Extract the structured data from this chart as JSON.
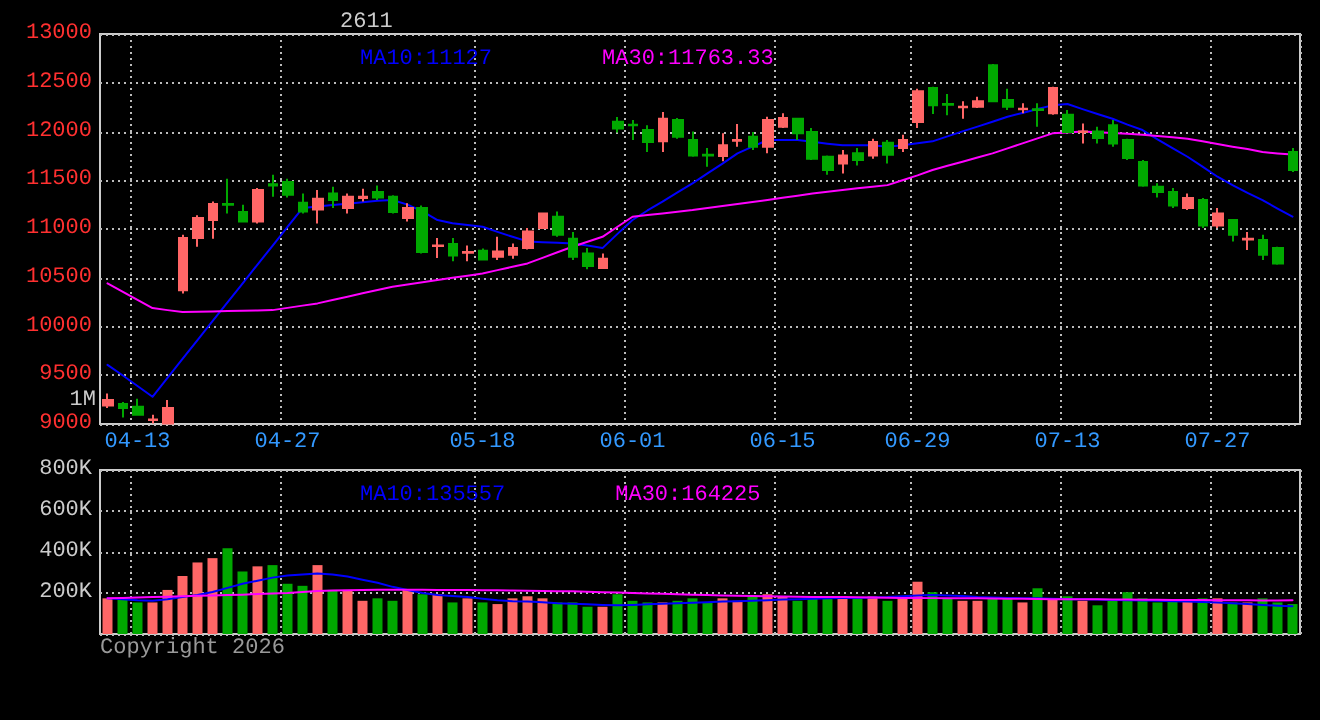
{
  "chart_data": [
    {
      "type": "candlestick",
      "title": "2611",
      "categories": [
        null,
        null,
        "04-13",
        null,
        null,
        null,
        null,
        null,
        null,
        null,
        null,
        null,
        "04-27",
        null,
        null,
        null,
        null,
        null,
        null,
        null,
        null,
        null,
        null,
        null,
        null,
        "05-18",
        null,
        null,
        null,
        null,
        null,
        null,
        null,
        null,
        null,
        "06-01",
        null,
        null,
        null,
        null,
        null,
        null,
        null,
        null,
        null,
        "06-15",
        null,
        null,
        null,
        null,
        null,
        null,
        null,
        null,
        "06-29",
        null,
        null,
        null,
        null,
        null,
        null,
        null,
        null,
        null,
        "07-13",
        null,
        null,
        null,
        null,
        null,
        null,
        null,
        null,
        null,
        "07-27",
        null,
        null,
        null,
        null,
        null
      ],
      "ohlc": [
        [
          9190,
          9313,
          9163,
          9245
        ],
        [
          9204,
          9225,
          9067,
          9163
        ],
        [
          9177,
          9259,
          9095,
          9095
        ],
        [
          9040,
          9095,
          9005,
          9047
        ],
        [
          9005,
          9245,
          9005,
          9163
        ],
        [
          10373,
          10941,
          10339,
          10907
        ],
        [
          10907,
          11140,
          10818,
          11112
        ],
        [
          11092,
          11283,
          10900,
          11256
        ],
        [
          11256,
          11516,
          11160,
          11248
        ],
        [
          11174,
          11250,
          11078,
          11078
        ],
        [
          11078,
          11420,
          11057,
          11400
        ],
        [
          11460,
          11557,
          11331,
          11447
        ],
        [
          11482,
          11516,
          11324,
          11352
        ],
        [
          11270,
          11365,
          11160,
          11180
        ],
        [
          11201,
          11400,
          11057,
          11310
        ],
        [
          11365,
          11433,
          11215,
          11297
        ],
        [
          11215,
          11365,
          11160,
          11331
        ],
        [
          11317,
          11413,
          11283,
          11331
        ],
        [
          11379,
          11447,
          11297,
          11324
        ],
        [
          11331,
          11345,
          11160,
          11174
        ],
        [
          11112,
          11263,
          11078,
          11215
        ],
        [
          11215,
          11242,
          10750,
          10763
        ],
        [
          10825,
          10907,
          10702,
          10832
        ],
        [
          10845,
          10907,
          10668,
          10729
        ],
        [
          10757,
          10832,
          10668,
          10763
        ],
        [
          10777,
          10800,
          10680,
          10688
        ],
        [
          10715,
          10920,
          10681,
          10770
        ],
        [
          10736,
          10852,
          10695,
          10804
        ],
        [
          10804,
          11010,
          10790,
          10975
        ],
        [
          11010,
          11170,
          11000,
          11160
        ],
        [
          11126,
          11180,
          10920,
          10941
        ],
        [
          10900,
          10968,
          10681,
          10715
        ],
        [
          10750,
          10804,
          10586,
          10620
        ],
        [
          10600,
          10750,
          10600,
          10695
        ],
        [
          12100,
          12150,
          11990,
          12030
        ],
        [
          12070,
          12118,
          11912,
          12063
        ],
        [
          12015,
          12063,
          11789,
          11892
        ],
        [
          11899,
          12200,
          11789,
          12131
        ],
        [
          12118,
          12138,
          11926,
          11947
        ],
        [
          11912,
          12001,
          11741,
          11755
        ],
        [
          11762,
          11830,
          11639,
          11755
        ],
        [
          11748,
          11981,
          11694,
          11858
        ],
        [
          11906,
          12077,
          11844,
          11912
        ],
        [
          11947,
          11995,
          11810,
          11844
        ],
        [
          11844,
          12152,
          11776,
          12118
        ],
        [
          12049,
          12186,
          12035,
          12138
        ],
        [
          12131,
          12131,
          11912,
          11981
        ],
        [
          11995,
          12035,
          11707,
          11721
        ],
        [
          11741,
          11755,
          11557,
          11604
        ],
        [
          11673,
          11810,
          11570,
          11755
        ],
        [
          11776,
          11830,
          11652,
          11707
        ],
        [
          11755,
          11926,
          11721,
          11892
        ],
        [
          11885,
          11912,
          11673,
          11762
        ],
        [
          11830,
          11967,
          11789,
          11912
        ],
        [
          12097,
          12439,
          12035,
          12412
        ],
        [
          12446,
          12460,
          12179,
          12268
        ],
        [
          12282,
          12385,
          12166,
          12275
        ],
        [
          12248,
          12309,
          12131,
          12255
        ],
        [
          12255,
          12357,
          12241,
          12309
        ],
        [
          12679,
          12692,
          12309,
          12309
        ],
        [
          12323,
          12439,
          12220,
          12255
        ],
        [
          12227,
          12289,
          12186,
          12234
        ],
        [
          12227,
          12289,
          12049,
          12220
        ],
        [
          12186,
          12460,
          12172,
          12446
        ],
        [
          12172,
          12220,
          11981,
          11995
        ],
        [
          11995,
          12083,
          11878,
          12001
        ],
        [
          12001,
          12049,
          11878,
          11933
        ],
        [
          12063,
          12118,
          11844,
          11878
        ],
        [
          11912,
          11926,
          11707,
          11728
        ],
        [
          11687,
          11707,
          11434,
          11447
        ],
        [
          11434,
          11468,
          11324,
          11379
        ],
        [
          11379,
          11420,
          11215,
          11242
        ],
        [
          11215,
          11365,
          11194,
          11317
        ],
        [
          11297,
          11317,
          11010,
          11037
        ],
        [
          11037,
          11215,
          11010,
          11160
        ],
        [
          11092,
          11092,
          10873,
          10941
        ],
        [
          10893,
          10968,
          10784,
          10900
        ],
        [
          10886,
          10941,
          10681,
          10736
        ],
        [
          10804,
          10818,
          10633,
          10647
        ],
        [
          11790,
          11830,
          11584,
          11604
        ]
      ],
      "colors": [
        "#ff6666",
        "#00a800",
        "#00a800",
        "#ff6666",
        "#ff6666",
        "#ff6666",
        "#ff6666",
        "#ff6666",
        "#00a800",
        "#00a800",
        "#ff6666",
        "#00a800",
        "#00a800",
        "#00a800",
        "#ff6666",
        "#00a800",
        "#ff6666",
        "#ff6666",
        "#00a800",
        "#00a800",
        "#ff6666",
        "#00a800",
        "#ff6666",
        "#00a800",
        "#ff6666",
        "#00a800",
        "#ff6666",
        "#ff6666",
        "#ff6666",
        "#ff6666",
        "#00a800",
        "#00a800",
        "#00a800",
        "#ff6666",
        "#00a800",
        "#00a800",
        "#00a800",
        "#ff6666",
        "#00a800",
        "#00a800",
        "#00a800",
        "#ff6666",
        "#ff6666",
        "#00a800",
        "#ff6666",
        "#ff6666",
        "#00a800",
        "#00a800",
        "#00a800",
        "#ff6666",
        "#00a800",
        "#ff6666",
        "#00a800",
        "#ff6666",
        "#ff6666",
        "#00a800",
        "#00a800",
        "#ff6666",
        "#ff6666",
        "#00a800",
        "#00a800",
        "#ff6666",
        "#00a800",
        "#ff6666",
        "#00a800",
        "#ff6666",
        "#00a800",
        "#00a800",
        "#00a800",
        "#00a800",
        "#00a800",
        "#00a800",
        "#ff6666",
        "#00a800",
        "#ff6666",
        "#00a800",
        "#ff6666",
        "#00a800",
        "#00a800",
        "#00a800"
      ],
      "series": [
        {
          "type": "line",
          "name": "MA10:11127",
          "color": "#0000ff",
          "values": [
            9607,
            9500,
            9390,
            9279,
            9473,
            9667,
            9860,
            10054,
            10248,
            10441,
            10635,
            10828,
            11022,
            11215,
            11230,
            11245,
            11260,
            11275,
            11290,
            11297,
            11250,
            11180,
            11092,
            11060,
            11040,
            11023,
            10970,
            10920,
            10873,
            10865,
            10858,
            10852,
            10830,
            10804,
            10950,
            11092,
            11190,
            11280,
            11375,
            11468,
            11570,
            11670,
            11776,
            11845,
            11912,
            11912,
            11912,
            11895,
            11875,
            11858,
            11858,
            11858,
            11844,
            11860,
            11880,
            11899,
            11950,
            12001,
            12050,
            12100,
            12152,
            12190,
            12230,
            12268,
            12282,
            12230,
            12180,
            12131,
            12070,
            12015,
            11920,
            11830,
            11741,
            11640,
            11536,
            11450,
            11370,
            11297,
            11210,
            11127
          ]
        },
        {
          "type": "line",
          "name": "MA30:11763.33",
          "color": "#ff00ff",
          "values": [
            10442,
            10358,
            10273,
            10189,
            10168,
            10148,
            10151,
            10155,
            10158,
            10161,
            10165,
            10168,
            10191,
            10214,
            10237,
            10271,
            10305,
            10340,
            10374,
            10408,
            10431,
            10453,
            10476,
            10499,
            10521,
            10544,
            10578,
            10612,
            10647,
            10704,
            10761,
            10818,
            10869,
            10920,
            11023,
            11126,
            11143,
            11160,
            11177,
            11194,
            11215,
            11235,
            11256,
            11276,
            11297,
            11320,
            11342,
            11365,
            11382,
            11399,
            11417,
            11434,
            11450,
            11500,
            11550,
            11605,
            11648,
            11690,
            11733,
            11776,
            11827,
            11878,
            11930,
            11981,
            11991,
            12001,
            11993,
            11984,
            11976,
            11967,
            11953,
            11940,
            11926,
            11899,
            11871,
            11844,
            11820,
            11790,
            11775,
            11763.33
          ]
        }
      ],
      "ylim": [
        9000,
        13000
      ],
      "yticks": [
        9000,
        9500,
        10000,
        10500,
        11000,
        11500,
        12000,
        12500,
        13000
      ],
      "grid": true,
      "legend": "top",
      "marker": "none",
      "line_style": "solid",
      "annotations": [
        "1M"
      ]
    },
    {
      "type": "bar",
      "categories": [
        null,
        null,
        null,
        null,
        null,
        null,
        null,
        null,
        null,
        null,
        null,
        null,
        null,
        null,
        null,
        null,
        null,
        null,
        null,
        null,
        null,
        null,
        null,
        null,
        null,
        null,
        null,
        null,
        null,
        null,
        null,
        null,
        null,
        null,
        null,
        null,
        null,
        null,
        null,
        null,
        null,
        null,
        null,
        null,
        null,
        null,
        null,
        null,
        null,
        null,
        null,
        null,
        null,
        null,
        null,
        null,
        null,
        null,
        null,
        null,
        null,
        null,
        null,
        null,
        null,
        null,
        null,
        null,
        null,
        null,
        null,
        null,
        null,
        null,
        null,
        null,
        null,
        null,
        null,
        null
      ],
      "series": [
        {
          "type": "bar",
          "values": [
            174000,
            174000,
            154000,
            154000,
            215000,
            283000,
            349000,
            370000,
            418000,
            305000,
            330000,
            336000,
            245000,
            235000,
            336000,
            215000,
            215000,
            162000,
            174000,
            162000,
            215000,
            194000,
            194000,
            154000,
            174000,
            154000,
            146000,
            174000,
            184000,
            174000,
            154000,
            154000,
            133000,
            133000,
            194000,
            162000,
            154000,
            154000,
            162000,
            174000,
            154000,
            174000,
            162000,
            184000,
            194000,
            184000,
            162000,
            174000,
            184000,
            184000,
            174000,
            184000,
            162000,
            184000,
            255000,
            204000,
            174000,
            162000,
            162000,
            174000,
            174000,
            154000,
            223000,
            174000,
            184000,
            162000,
            140000,
            162000,
            204000,
            174000,
            154000,
            162000,
            162000,
            174000,
            174000,
            154000,
            154000,
            174000,
            154000,
            146000
          ],
          "colors": [
            "#ff6666",
            "#00a800",
            "#00a800",
            "#ff6666",
            "#ff6666",
            "#ff6666",
            "#ff6666",
            "#ff6666",
            "#00a800",
            "#00a800",
            "#ff6666",
            "#00a800",
            "#00a800",
            "#00a800",
            "#ff6666",
            "#00a800",
            "#ff6666",
            "#ff6666",
            "#00a800",
            "#00a800",
            "#ff6666",
            "#00a800",
            "#ff6666",
            "#00a800",
            "#ff6666",
            "#00a800",
            "#ff6666",
            "#ff6666",
            "#ff6666",
            "#ff6666",
            "#00a800",
            "#00a800",
            "#00a800",
            "#ff6666",
            "#00a800",
            "#00a800",
            "#00a800",
            "#ff6666",
            "#00a800",
            "#00a800",
            "#00a800",
            "#ff6666",
            "#ff6666",
            "#00a800",
            "#ff6666",
            "#ff6666",
            "#00a800",
            "#00a800",
            "#00a800",
            "#ff6666",
            "#00a800",
            "#ff6666",
            "#00a800",
            "#ff6666",
            "#ff6666",
            "#00a800",
            "#00a800",
            "#ff6666",
            "#ff6666",
            "#00a800",
            "#00a800",
            "#ff6666",
            "#00a800",
            "#ff6666",
            "#00a800",
            "#ff6666",
            "#00a800",
            "#00a800",
            "#00a800",
            "#00a800",
            "#00a800",
            "#00a800",
            "#ff6666",
            "#00a800",
            "#ff6666",
            "#00a800",
            "#ff6666",
            "#00a800",
            "#00a800",
            "#00a800"
          ]
        },
        {
          "type": "line",
          "name": "MA10:135557",
          "color": "#0000ff",
          "values": [
            174000,
            170000,
            165000,
            162000,
            170000,
            180000,
            190000,
            205000,
            225000,
            245000,
            260000,
            275000,
            285000,
            290000,
            295000,
            290000,
            280000,
            265000,
            250000,
            230000,
            215000,
            200000,
            190000,
            185000,
            180000,
            172000,
            165000,
            160000,
            158000,
            155000,
            150000,
            148000,
            145000,
            142000,
            140000,
            142000,
            145000,
            148000,
            150000,
            152000,
            155000,
            158000,
            160000,
            162000,
            165000,
            168000,
            170000,
            172000,
            174000,
            175000,
            176000,
            178000,
            180000,
            184000,
            188000,
            190000,
            188000,
            185000,
            180000,
            178000,
            176000,
            175000,
            174000,
            172000,
            170000,
            170000,
            168000,
            166000,
            165000,
            164000,
            162000,
            160000,
            158000,
            156000,
            154000,
            150000,
            146000,
            142000,
            138000,
            135557
          ]
        },
        {
          "type": "line",
          "name": "MA30:164225",
          "color": "#ff00ff",
          "values": [
            174000,
            176000,
            178000,
            180000,
            182000,
            184000,
            186000,
            188000,
            190000,
            192000,
            195000,
            198000,
            200000,
            205000,
            210000,
            212000,
            214000,
            215000,
            216000,
            216000,
            216000,
            216000,
            215000,
            215000,
            215000,
            214000,
            213000,
            212000,
            211000,
            210000,
            209000,
            208000,
            206000,
            204000,
            202000,
            200000,
            198000,
            196000,
            194000,
            192000,
            190000,
            188000,
            186000,
            185000,
            184000,
            183000,
            182000,
            181000,
            180000,
            180000,
            179000,
            178000,
            177000,
            176000,
            176000,
            175000,
            175000,
            174000,
            174000,
            173000,
            172000,
            172000,
            171000,
            170000,
            170000,
            169000,
            169000,
            168000,
            168000,
            167000,
            167000,
            166000,
            166000,
            166000,
            165000,
            165000,
            165000,
            164000,
            164000,
            164225
          ]
        }
      ],
      "ylim": [
        0,
        800000
      ],
      "yticks": [
        {
          "value": 200000,
          "label": "200K"
        },
        {
          "value": 400000,
          "label": "400K"
        },
        {
          "value": 600000,
          "label": "600K"
        },
        {
          "value": 800000,
          "label": "800K"
        }
      ],
      "grid": true,
      "legend": "top",
      "marker": "none",
      "line_style": "solid",
      "tick_labels": "y",
      "annotations": [
        "Copyright 2026"
      ]
    }
  ]
}
